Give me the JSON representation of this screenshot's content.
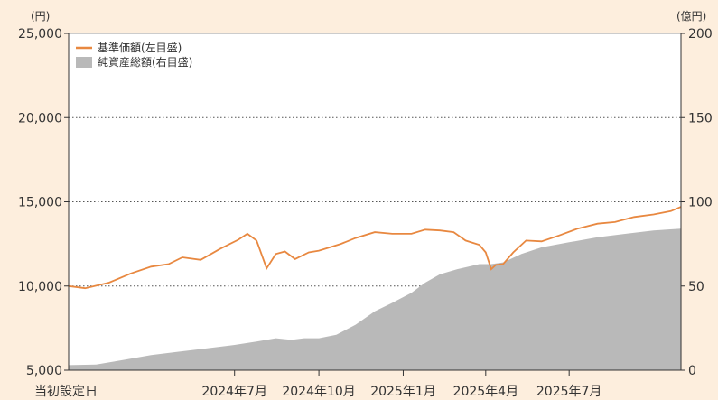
{
  "chart_data": {
    "type": "line",
    "left_unit": "(円)",
    "right_unit": "(億円)",
    "left_axis": {
      "ticks": [
        "5,000",
        "10,000",
        "15,000",
        "20,000",
        "25,000"
      ],
      "min": 5000,
      "max": 25000
    },
    "right_axis": {
      "ticks": [
        "0",
        "50",
        "100",
        "150",
        "200"
      ],
      "min": 0,
      "max": 200
    },
    "x_labels": [
      "当初設定日",
      "2024年7月",
      "2024年10月",
      "2025年1月",
      "2025年4月",
      "2025年7月"
    ],
    "x_label_positions": [
      "2024-01-02",
      "2024-07-01",
      "2024-10-01",
      "2025-01-01",
      "2025-04-01",
      "2025-07-01"
    ],
    "x_range": [
      "2024-01-02",
      "2025-10-31"
    ],
    "grid": "dotted horizontal",
    "legend_position": "top-left",
    "series": [
      {
        "name": "基準価額(左目盛)",
        "axis": "left",
        "style": "line",
        "color": "#e88840",
        "points": [
          [
            "2024-01-02",
            10000
          ],
          [
            "2024-01-20",
            9870
          ],
          [
            "2024-02-15",
            10200
          ],
          [
            "2024-03-10",
            10750
          ],
          [
            "2024-04-01",
            11150
          ],
          [
            "2024-04-20",
            11300
          ],
          [
            "2024-05-05",
            11700
          ],
          [
            "2024-05-25",
            11550
          ],
          [
            "2024-06-15",
            12200
          ],
          [
            "2024-07-05",
            12750
          ],
          [
            "2024-07-15",
            13100
          ],
          [
            "2024-07-25",
            12700
          ],
          [
            "2024-08-05",
            11050
          ],
          [
            "2024-08-15",
            11900
          ],
          [
            "2024-08-25",
            12050
          ],
          [
            "2024-09-05",
            11600
          ],
          [
            "2024-09-20",
            12000
          ],
          [
            "2024-10-01",
            12100
          ],
          [
            "2024-10-25",
            12500
          ],
          [
            "2024-11-10",
            12850
          ],
          [
            "2024-12-01",
            13200
          ],
          [
            "2024-12-20",
            13100
          ],
          [
            "2025-01-10",
            13100
          ],
          [
            "2025-01-25",
            13350
          ],
          [
            "2025-02-10",
            13300
          ],
          [
            "2025-02-25",
            13200
          ],
          [
            "2025-03-10",
            12700
          ],
          [
            "2025-03-25",
            12450
          ],
          [
            "2025-04-01",
            12000
          ],
          [
            "2025-04-07",
            11000
          ],
          [
            "2025-04-12",
            11250
          ],
          [
            "2025-04-20",
            11300
          ],
          [
            "2025-05-01",
            12000
          ],
          [
            "2025-05-15",
            12700
          ],
          [
            "2025-06-01",
            12650
          ],
          [
            "2025-06-20",
            13000
          ],
          [
            "2025-07-10",
            13400
          ],
          [
            "2025-08-01",
            13700
          ],
          [
            "2025-08-20",
            13800
          ],
          [
            "2025-09-10",
            14100
          ],
          [
            "2025-10-01",
            14250
          ],
          [
            "2025-10-20",
            14450
          ],
          [
            "2025-10-31",
            14700
          ]
        ]
      },
      {
        "name": "純資産総額(右目盛)",
        "axis": "right",
        "style": "area",
        "color": "#b9b9b9",
        "points": [
          [
            "2024-01-02",
            3
          ],
          [
            "2024-02-01",
            3.3
          ],
          [
            "2024-03-01",
            6
          ],
          [
            "2024-04-01",
            9
          ],
          [
            "2024-05-01",
            11
          ],
          [
            "2024-06-01",
            13
          ],
          [
            "2024-07-01",
            15
          ],
          [
            "2024-07-25",
            17
          ],
          [
            "2024-08-15",
            19
          ],
          [
            "2024-09-01",
            18
          ],
          [
            "2024-09-15",
            19
          ],
          [
            "2024-10-01",
            19
          ],
          [
            "2024-10-20",
            21
          ],
          [
            "2024-11-10",
            27
          ],
          [
            "2024-12-01",
            35
          ],
          [
            "2024-12-20",
            40
          ],
          [
            "2025-01-10",
            46
          ],
          [
            "2025-01-25",
            52
          ],
          [
            "2025-02-10",
            57
          ],
          [
            "2025-03-01",
            60
          ],
          [
            "2025-03-25",
            63
          ],
          [
            "2025-04-07",
            63
          ],
          [
            "2025-04-20",
            64
          ],
          [
            "2025-05-10",
            69
          ],
          [
            "2025-06-01",
            73
          ],
          [
            "2025-07-01",
            76
          ],
          [
            "2025-08-01",
            79
          ],
          [
            "2025-09-01",
            81
          ],
          [
            "2025-10-01",
            83
          ],
          [
            "2025-10-31",
            84
          ]
        ]
      }
    ]
  }
}
